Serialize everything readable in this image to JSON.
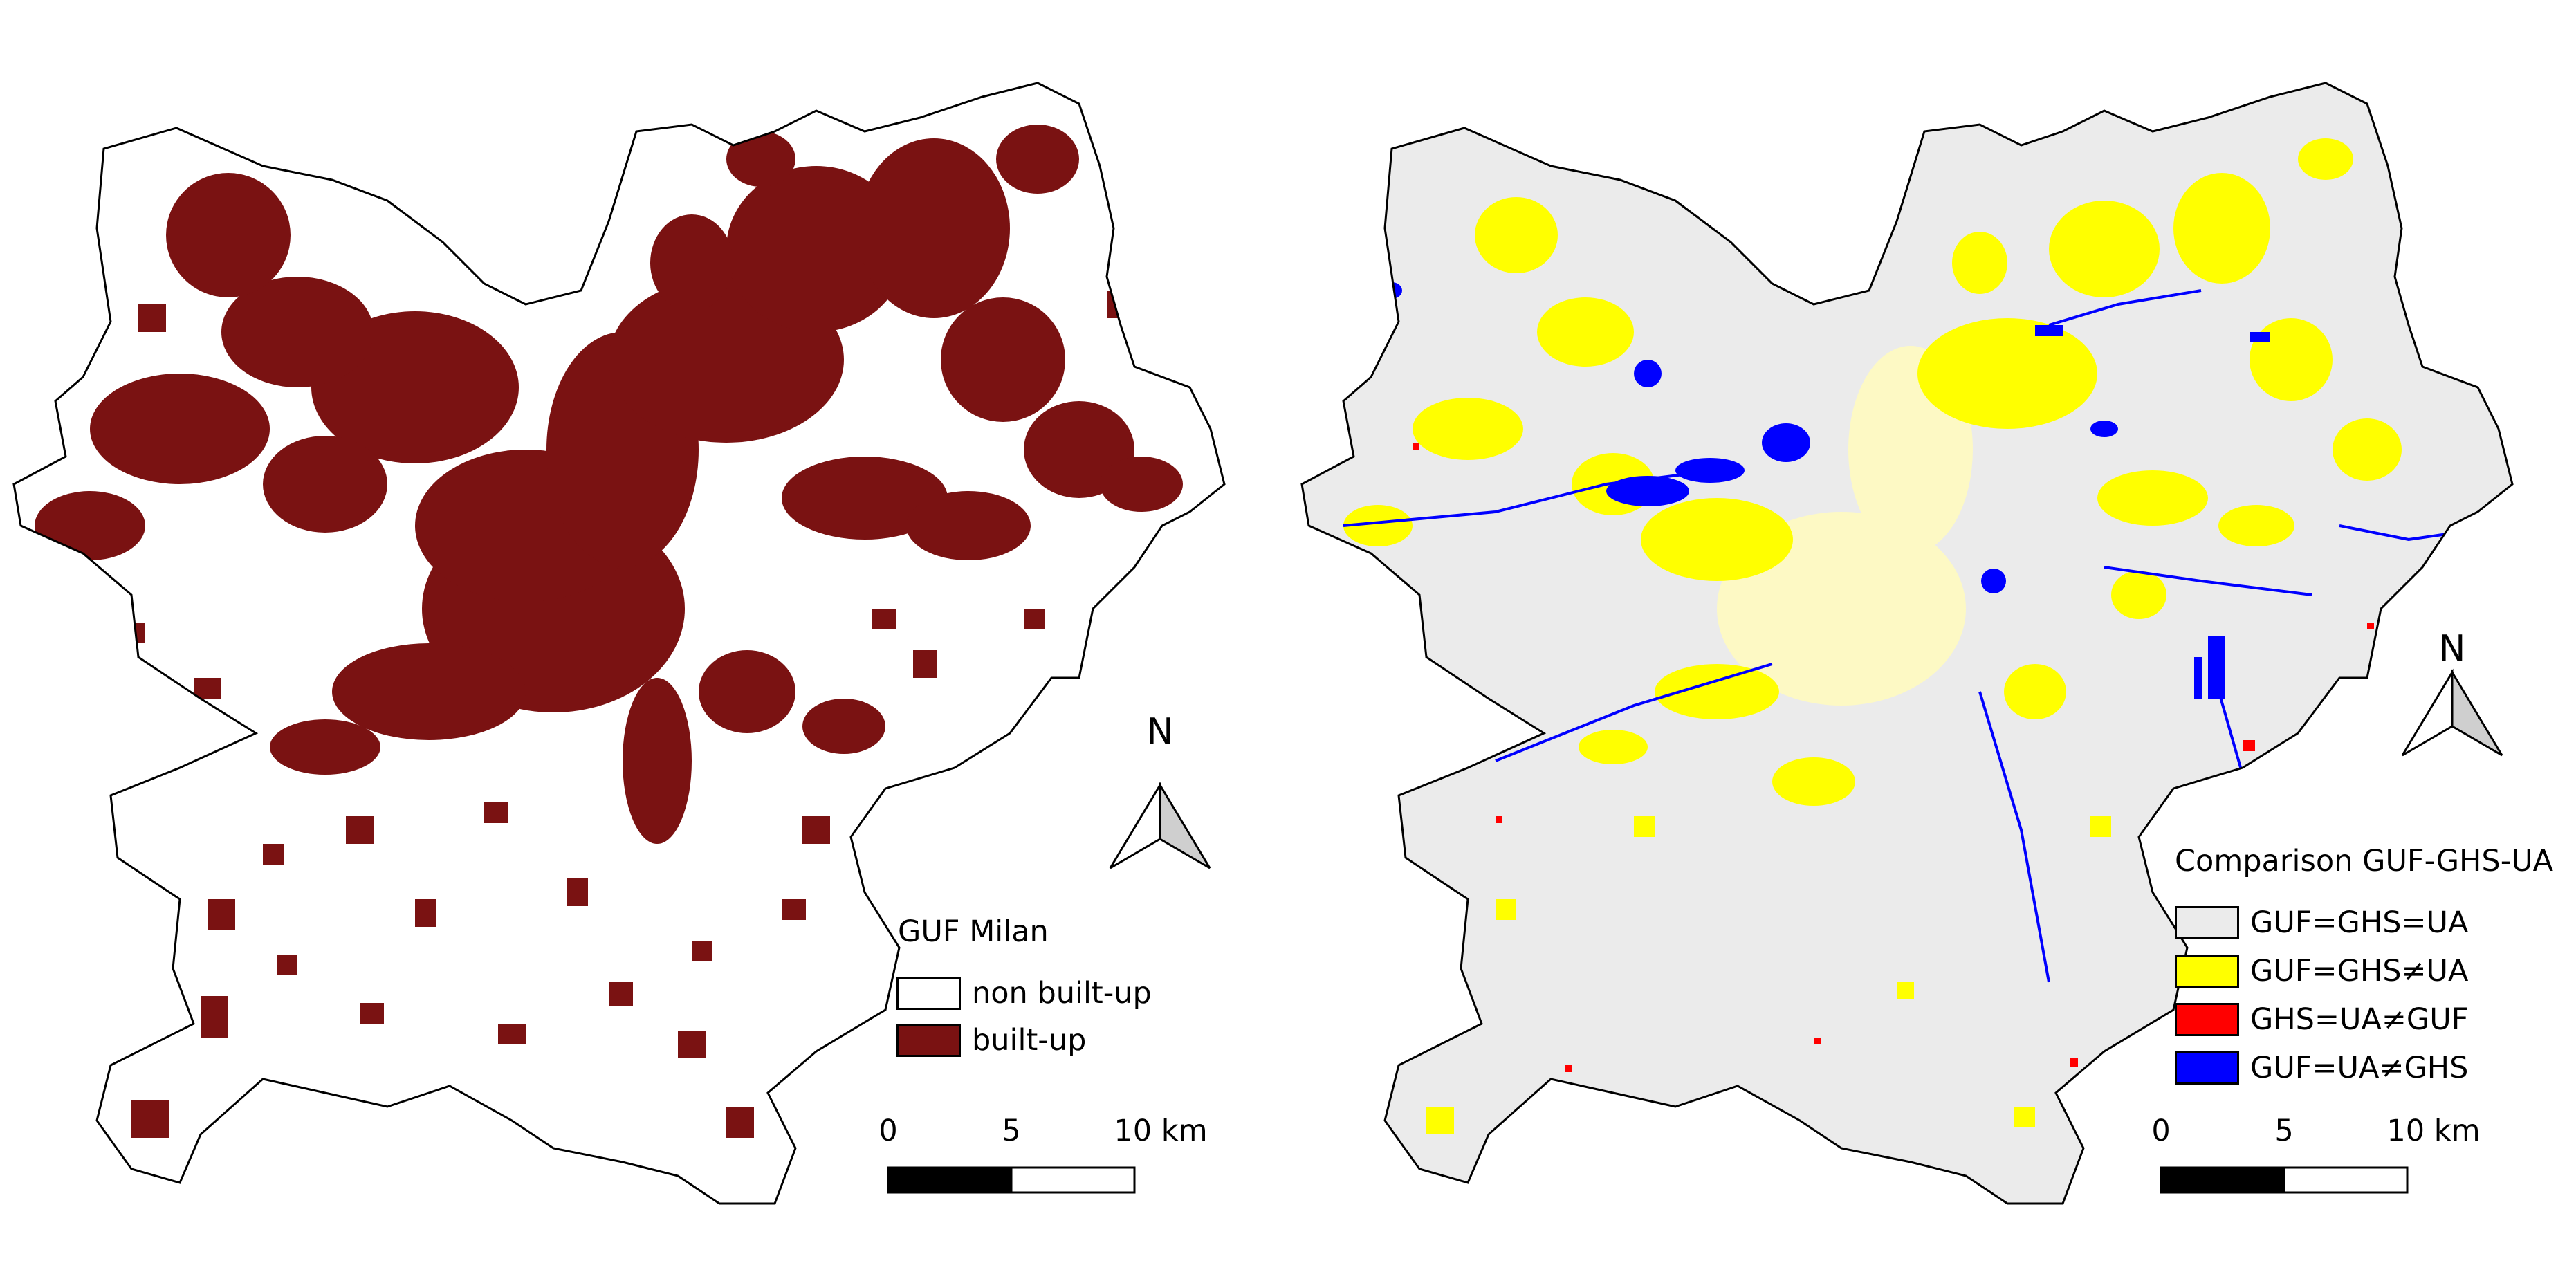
{
  "maps": [
    {
      "legend": {
        "title": "GUF Milan",
        "items": [
          {
            "label": "non built-up",
            "color": "#ffffff"
          },
          {
            "label": "built-up",
            "color": "#7a1212"
          }
        ]
      },
      "scale_bar": {
        "ticks": [
          "0",
          "5",
          "10 km"
        ]
      },
      "north_arrow": {
        "letter": "N"
      }
    },
    {
      "legend": {
        "title": "Comparison GUF-GHS-UA",
        "items": [
          {
            "label": "GUF=GHS=UA",
            "color": "#ebebeb"
          },
          {
            "label": "GUF=GHS≠UA",
            "color": "#ffff00"
          },
          {
            "label": "GHS=UA≠GUF",
            "color": "#ff0000"
          },
          {
            "label": "GUF=UA≠GHS",
            "color": "#0000ff"
          }
        ]
      },
      "scale_bar": {
        "ticks": [
          "0",
          "5",
          "10 km"
        ]
      },
      "north_arrow": {
        "letter": "N"
      }
    }
  ]
}
